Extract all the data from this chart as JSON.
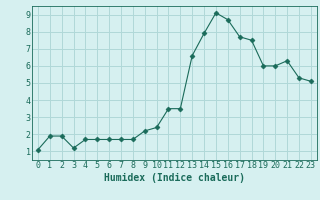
{
  "x": [
    0,
    1,
    2,
    3,
    4,
    5,
    6,
    7,
    8,
    9,
    10,
    11,
    12,
    13,
    14,
    15,
    16,
    17,
    18,
    19,
    20,
    21,
    22,
    23
  ],
  "y": [
    1.1,
    1.9,
    1.9,
    1.2,
    1.7,
    1.7,
    1.7,
    1.7,
    1.7,
    2.2,
    2.4,
    3.5,
    3.5,
    6.6,
    7.9,
    9.1,
    8.7,
    7.7,
    7.5,
    6.0,
    6.0,
    6.3,
    5.3,
    5.1
  ],
  "line_color": "#1a6b5a",
  "marker": "D",
  "marker_size": 2.5,
  "bg_color": "#d6f0f0",
  "grid_color": "#b0d8d8",
  "xlabel": "Humidex (Indice chaleur)",
  "xlim": [
    -0.5,
    23.5
  ],
  "ylim": [
    0.5,
    9.5
  ],
  "yticks": [
    1,
    2,
    3,
    4,
    5,
    6,
    7,
    8,
    9
  ],
  "xticks": [
    0,
    1,
    2,
    3,
    4,
    5,
    6,
    7,
    8,
    9,
    10,
    11,
    12,
    13,
    14,
    15,
    16,
    17,
    18,
    19,
    20,
    21,
    22,
    23
  ],
  "tick_color": "#1a6b5a",
  "label_fontsize": 6,
  "xlabel_fontsize": 7
}
